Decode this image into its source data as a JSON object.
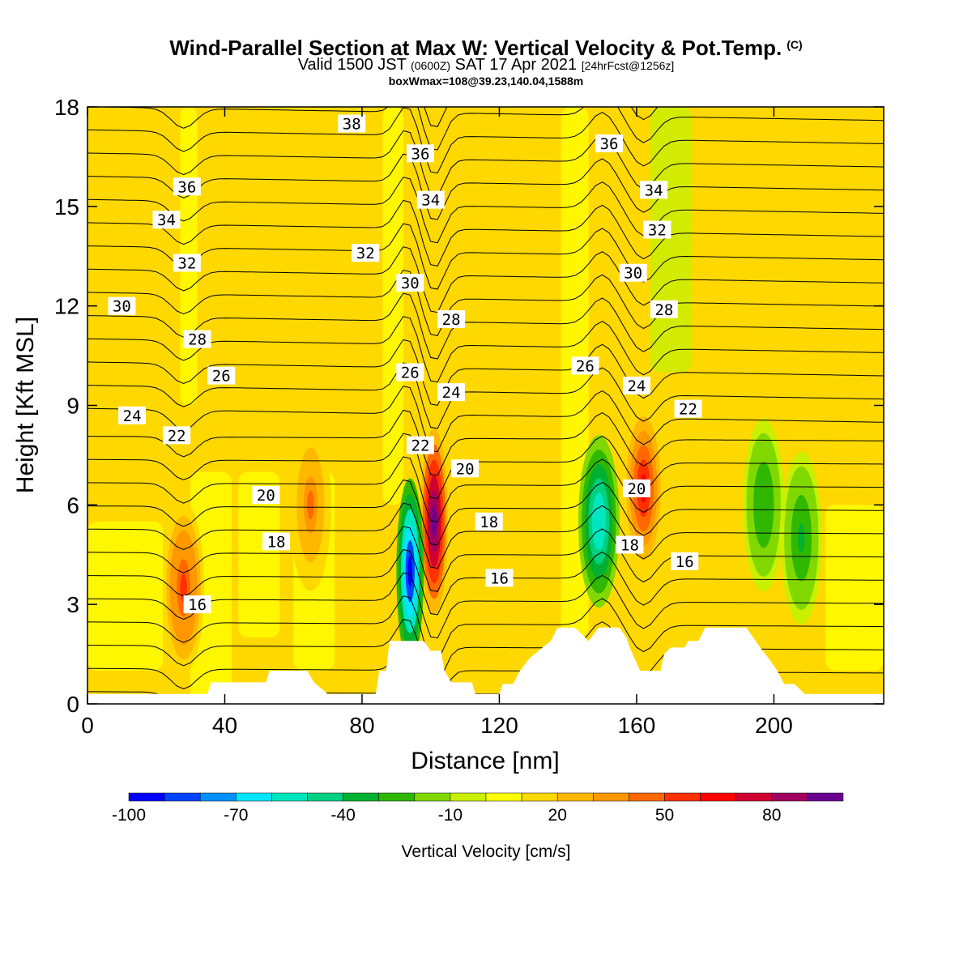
{
  "header": {
    "title": "Wind-Parallel Section at Max W: Vertical Velocity & Pot.Temp.",
    "title_mark": "(C)",
    "valid_prefix": "Valid 1500 JST",
    "valid_utc": "(0600Z)",
    "valid_date": "SAT 17 Apr 2021",
    "forecast_info": "[24hrFcst@1256z]",
    "box_info": "boxWmax=108@39.23,140.04,1588m"
  },
  "chart_data": {
    "type": "heatmap",
    "xlabel": "Distance [nm]",
    "ylabel": "Height [Kft MSL]",
    "xlim": [
      0,
      232
    ],
    "ylim": [
      0,
      18
    ],
    "x_ticks": [
      0,
      40,
      80,
      120,
      160,
      200
    ],
    "y_ticks": [
      0,
      3,
      6,
      9,
      12,
      15,
      18
    ],
    "colorbar": {
      "label": "Vertical Velocity [cm/s]",
      "tick_labels": [
        "-100",
        "-70",
        "-40",
        "-10",
        "20",
        "50",
        "80"
      ],
      "tick_values": [
        -100,
        -70,
        -40,
        -10,
        20,
        50,
        80
      ],
      "colors": [
        "#0000ff",
        "#0044ff",
        "#0090ff",
        "#00e6ff",
        "#00e6c0",
        "#00d080",
        "#00b030",
        "#30b800",
        "#80d800",
        "#c8f000",
        "#ffff00",
        "#ffd800",
        "#ffb800",
        "#ff9800",
        "#ff6800",
        "#ff3000",
        "#ff0000",
        "#d00030",
        "#a00060",
        "#6a0090"
      ],
      "range": [
        -100,
        100
      ],
      "step": 10
    },
    "w_cells": [
      {
        "name": "main-updraft",
        "x": 101,
        "z": 5.5,
        "w": 100
      },
      {
        "name": "main-downdraft",
        "x": 94,
        "z": 4.0,
        "w": -100
      },
      {
        "name": "updraft-160",
        "x": 162,
        "z": 6.5,
        "w": 65
      },
      {
        "name": "downdraft-150",
        "x": 149,
        "z": 5.5,
        "w": -60
      },
      {
        "name": "updraft-28",
        "x": 28,
        "z": 3.5,
        "w": 55
      },
      {
        "name": "downdraft-208",
        "x": 208,
        "z": 5.0,
        "w": -35
      },
      {
        "name": "downdraft-196",
        "x": 197,
        "z": 6.0,
        "w": -30
      },
      {
        "name": "updraft-65",
        "x": 65,
        "z": 6.0,
        "w": 40
      }
    ],
    "theta_contours": [
      {
        "label": "16",
        "label_x": 32,
        "label_z": 3.0,
        "base_z": 2.4
      },
      {
        "label": "18",
        "label_x": 55,
        "label_z": 4.9,
        "base_z": 4.6
      },
      {
        "label": "20",
        "label_x": 52,
        "label_z": 6.3,
        "base_z": 6.2
      },
      {
        "label": "22",
        "label_x": 26,
        "label_z": 8.1,
        "base_z": 7.8
      },
      {
        "label": "24",
        "label_x": 13,
        "label_z": 8.7,
        "base_z": 8.7
      },
      {
        "label": "26",
        "label_x": 39,
        "label_z": 9.9,
        "base_z": 9.8
      },
      {
        "label": "28",
        "label_x": 32,
        "label_z": 11.0,
        "base_z": 11.0
      },
      {
        "label": "30",
        "label_x": 10,
        "label_z": 12.0,
        "base_z": 12.0
      },
      {
        "label": "32",
        "label_x": 29,
        "label_z": 13.3,
        "base_z": 13.2
      },
      {
        "label": "34",
        "label_x": 23,
        "label_z": 14.6,
        "base_z": 14.5
      },
      {
        "label": "36",
        "label_x": 29,
        "label_z": 15.6,
        "base_z": 15.4
      },
      {
        "label": "38",
        "label_x": 77,
        "label_z": 17.5,
        "base_z": 17.4
      }
    ],
    "theta_extra_labels": [
      {
        "label": "16",
        "x": 120,
        "z": 3.8
      },
      {
        "label": "16",
        "x": 174,
        "z": 4.3
      },
      {
        "label": "18",
        "x": 117,
        "z": 5.5
      },
      {
        "label": "18",
        "x": 158,
        "z": 4.8
      },
      {
        "label": "20",
        "x": 110,
        "z": 7.1
      },
      {
        "label": "20",
        "x": 160,
        "z": 6.5
      },
      {
        "label": "22",
        "x": 97,
        "z": 7.8
      },
      {
        "label": "22",
        "x": 175,
        "z": 8.9
      },
      {
        "label": "24",
        "x": 106,
        "z": 9.4
      },
      {
        "label": "24",
        "x": 160,
        "z": 9.6
      },
      {
        "label": "26",
        "x": 94,
        "z": 10.0
      },
      {
        "label": "26",
        "x": 145,
        "z": 10.2
      },
      {
        "label": "28",
        "x": 106,
        "z": 11.6
      },
      {
        "label": "28",
        "x": 168,
        "z": 11.9
      },
      {
        "label": "30",
        "x": 94,
        "z": 12.7
      },
      {
        "label": "30",
        "x": 159,
        "z": 13.0
      },
      {
        "label": "32",
        "x": 81,
        "z": 13.6
      },
      {
        "label": "32",
        "x": 166,
        "z": 14.3
      },
      {
        "label": "34",
        "x": 100,
        "z": 15.2
      },
      {
        "label": "34",
        "x": 165,
        "z": 15.5
      },
      {
        "label": "36",
        "x": 97,
        "z": 16.6
      },
      {
        "label": "36",
        "x": 152,
        "z": 16.9
      }
    ],
    "terrain": [
      [
        0,
        0.3
      ],
      [
        35,
        0.3
      ],
      [
        36,
        0.65
      ],
      [
        52,
        0.65
      ],
      [
        53,
        1.0
      ],
      [
        64,
        1.0
      ],
      [
        66,
        0.65
      ],
      [
        70,
        0.3
      ],
      [
        84,
        0.3
      ],
      [
        85,
        1.0
      ],
      [
        87,
        1.0
      ],
      [
        88,
        1.9
      ],
      [
        98,
        1.9
      ],
      [
        100,
        1.6
      ],
      [
        103,
        1.6
      ],
      [
        104,
        1.0
      ],
      [
        106,
        0.65
      ],
      [
        112,
        0.65
      ],
      [
        113,
        0.3
      ],
      [
        120,
        0.3
      ],
      [
        121,
        0.6
      ],
      [
        124,
        0.6
      ],
      [
        126,
        1.0
      ],
      [
        129,
        1.4
      ],
      [
        135,
        1.9
      ],
      [
        137,
        2.3
      ],
      [
        142,
        2.3
      ],
      [
        145,
        2.0
      ],
      [
        146,
        1.9
      ],
      [
        149,
        2.3
      ],
      [
        155,
        2.3
      ],
      [
        157,
        2.0
      ],
      [
        158,
        1.7
      ],
      [
        161,
        1.0
      ],
      [
        167,
        1.0
      ],
      [
        168,
        1.5
      ],
      [
        170,
        1.7
      ],
      [
        174,
        1.7
      ],
      [
        175,
        1.9
      ],
      [
        178,
        1.9
      ],
      [
        180,
        2.3
      ],
      [
        192,
        2.3
      ],
      [
        194,
        2.0
      ],
      [
        196,
        1.7
      ],
      [
        199,
        1.3
      ],
      [
        201,
        1.0
      ],
      [
        203,
        0.6
      ],
      [
        206,
        0.6
      ],
      [
        209,
        0.3
      ],
      [
        232,
        0.3
      ]
    ]
  }
}
